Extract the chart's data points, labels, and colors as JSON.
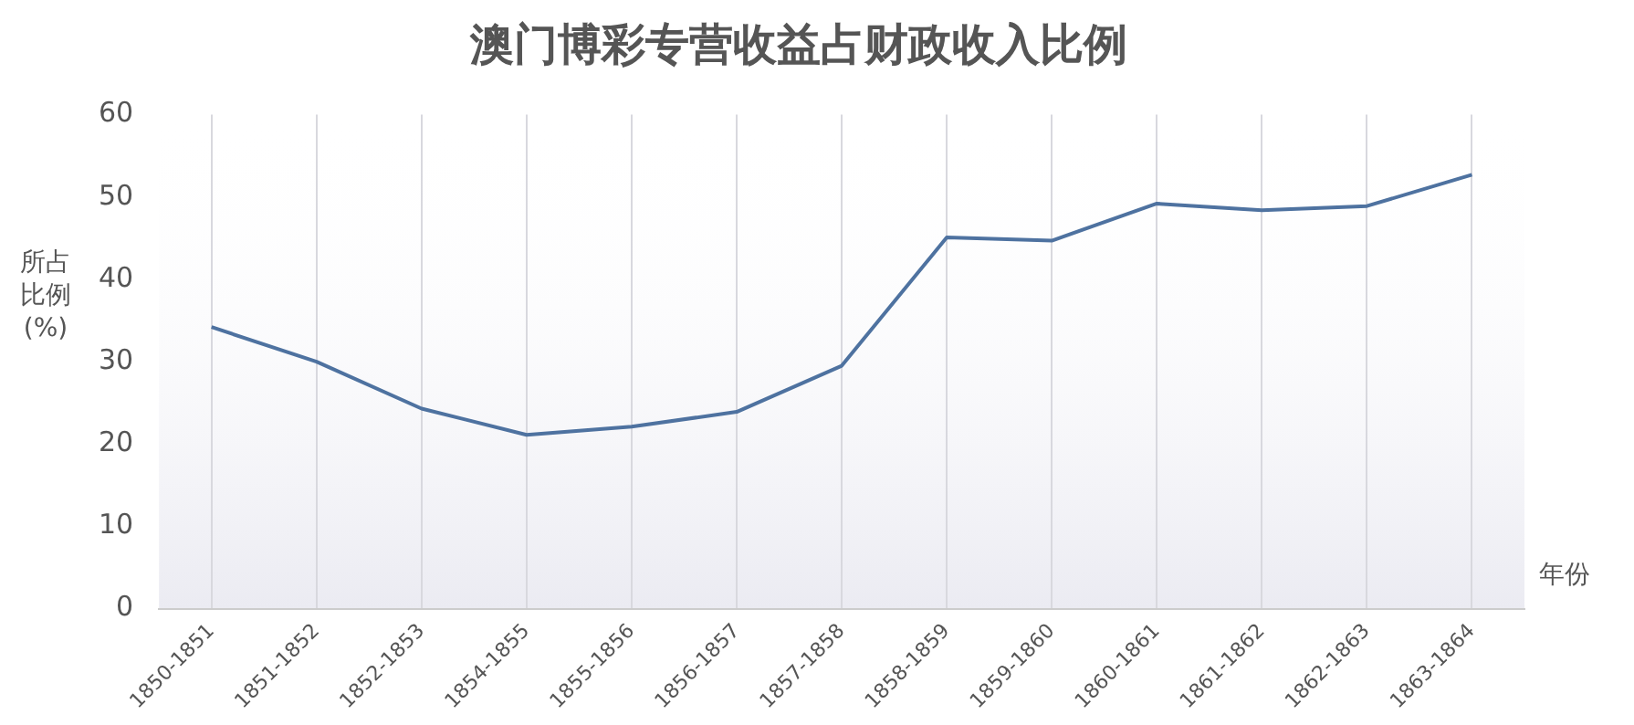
{
  "chart_data": {
    "type": "line",
    "title": "澳门博彩专营收益占财政收入比例",
    "xlabel": "年份",
    "ylabel": "所占比例(%)",
    "categories": [
      "1850-1851",
      "1851-1852",
      "1852-1853",
      "1854-1855",
      "1855-1856",
      "1856-1857",
      "1857-1858",
      "1858-1859",
      "1859-1860",
      "1860-1861",
      "1861-1862",
      "1862-1863",
      "1863-1864"
    ],
    "series": [
      {
        "color": "#4e72a0",
        "values": [
          34.2,
          30,
          24.3,
          21.1,
          22.1,
          23.9,
          29.5,
          45.1,
          44.7,
          49.2,
          48.4,
          48.9,
          52.7
        ]
      }
    ],
    "ylim": [
      0,
      60
    ],
    "yticks": [
      0,
      10,
      20,
      30,
      40,
      50,
      60
    ],
    "grid": "x",
    "legend": false,
    "marker": "none",
    "line_style": "solid"
  }
}
